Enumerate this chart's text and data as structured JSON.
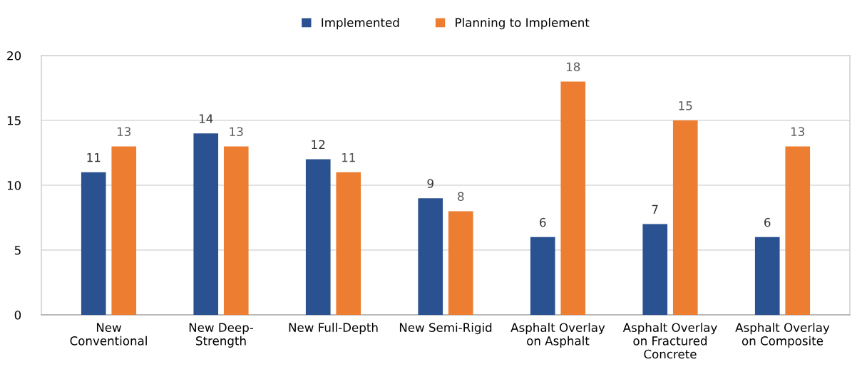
{
  "chart_data": {
    "type": "bar",
    "categories": [
      "New\nConventional",
      "New Deep-\nStrength",
      "New Full-Depth",
      "New Semi-Rigid",
      "Asphalt Overlay\non Asphalt",
      "Asphalt Overlay\non Fractured\nConcrete",
      "Asphalt Overlay\non Composite"
    ],
    "series": [
      {
        "name": "Implemented",
        "color": "#2a5290",
        "values": [
          11,
          14,
          12,
          9,
          6,
          7,
          6
        ]
      },
      {
        "name": "Planning to Implement",
        "color": "#ed7d31",
        "values": [
          13,
          13,
          11,
          8,
          18,
          15,
          13
        ]
      }
    ],
    "ylim": [
      0,
      20
    ],
    "yticks": [
      0,
      5,
      10,
      15,
      20
    ],
    "grid": "y",
    "legend": "top",
    "data_labels": true
  }
}
